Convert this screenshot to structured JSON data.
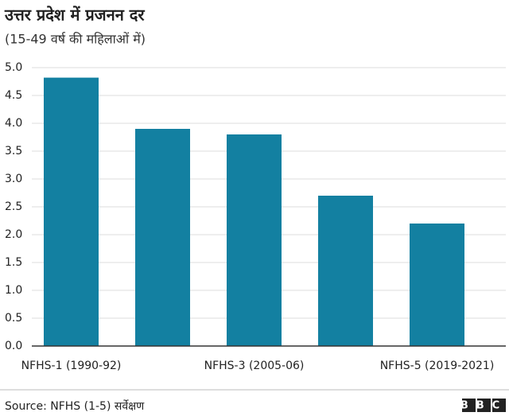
{
  "chart_data": {
    "type": "bar",
    "title": "उत्तर प्रदेश में प्रजनन दर",
    "subtitle": "(15-49 वर्ष की महिलाओं में)",
    "categories": [
      "NFHS-1 (1990-92)",
      null,
      "NFHS-3 (2005-06)",
      null,
      "NFHS-5 (2019-2021)"
    ],
    "values": [
      4.82,
      3.9,
      3.8,
      2.7,
      2.2
    ],
    "color": "#1380a1",
    "ylim": [
      0,
      5
    ],
    "yticks": [
      {
        "value": 0,
        "label": "0.0"
      },
      0.5,
      {
        "value": 1,
        "label": "1.0"
      },
      1.5,
      {
        "value": 2,
        "label": "2.0"
      },
      2.5,
      {
        "value": 3,
        "label": "3.0"
      },
      3.5,
      {
        "value": 4,
        "label": "4.0"
      },
      4.5,
      {
        "value": 5,
        "label": "5.0"
      }
    ],
    "grid": true,
    "source": "Source: NFHS (1-5) सर्वेक्षण",
    "logo": "BBC"
  }
}
